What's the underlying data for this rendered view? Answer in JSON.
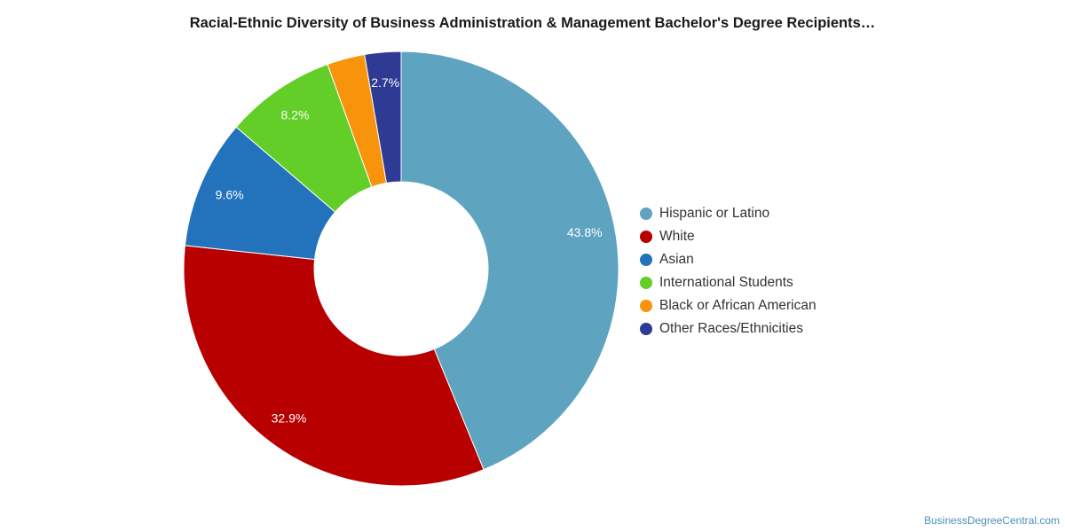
{
  "chart_data": {
    "type": "pie",
    "title": "Racial-Ethnic Diversity of Business Administration & Management Bachelor's Degree Recipients…",
    "donut": true,
    "legend_position": "right",
    "series": [
      {
        "name": "Hispanic or Latino",
        "value": 43.8,
        "label": "43.8%",
        "color": "#5ea4c0"
      },
      {
        "name": "White",
        "value": 32.9,
        "label": "32.9%",
        "color": "#b80000"
      },
      {
        "name": "Asian",
        "value": 9.6,
        "label": "9.6%",
        "color": "#2273bb"
      },
      {
        "name": "International Students",
        "value": 8.2,
        "label": "8.2%",
        "color": "#62ce27"
      },
      {
        "name": "Black or African American",
        "value": 2.8,
        "label": "",
        "color": "#f8940c"
      },
      {
        "name": "Other Races/Ethnicities",
        "value": 2.7,
        "label": "2.7%",
        "color": "#2e3a94"
      }
    ]
  },
  "credit": "BusinessDegreeCentral.com"
}
